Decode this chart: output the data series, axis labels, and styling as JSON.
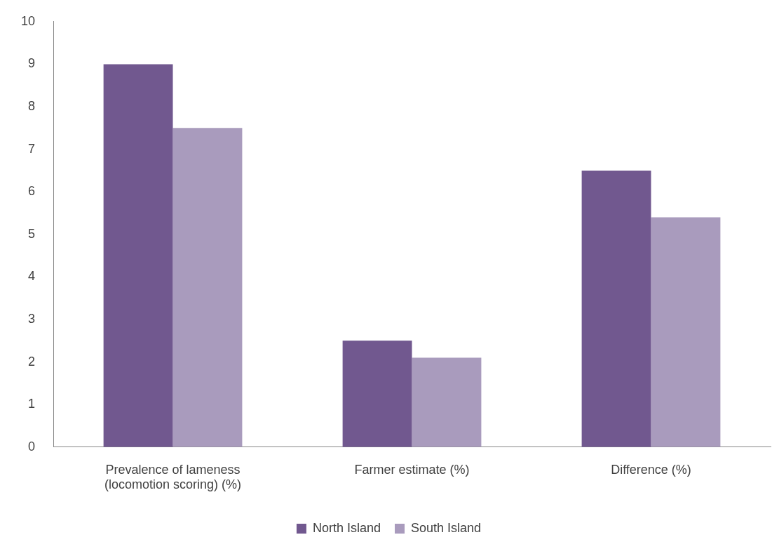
{
  "chart_data": {
    "type": "bar",
    "categories": [
      "Prevalence of lameness (locomotion scoring) (%)",
      "Farmer estimate (%)",
      "Difference (%)"
    ],
    "series": [
      {
        "name": "North Island",
        "color": "#71588f",
        "values": [
          9,
          2.5,
          6.5
        ]
      },
      {
        "name": "South Island",
        "color": "#a99bbd",
        "values": [
          7.5,
          2.1,
          5.4
        ]
      }
    ],
    "ylim": [
      0,
      10
    ],
    "yticks": [
      0,
      1,
      2,
      3,
      4,
      5,
      6,
      7,
      8,
      9,
      10
    ],
    "grid": false,
    "legend": "bottom"
  }
}
